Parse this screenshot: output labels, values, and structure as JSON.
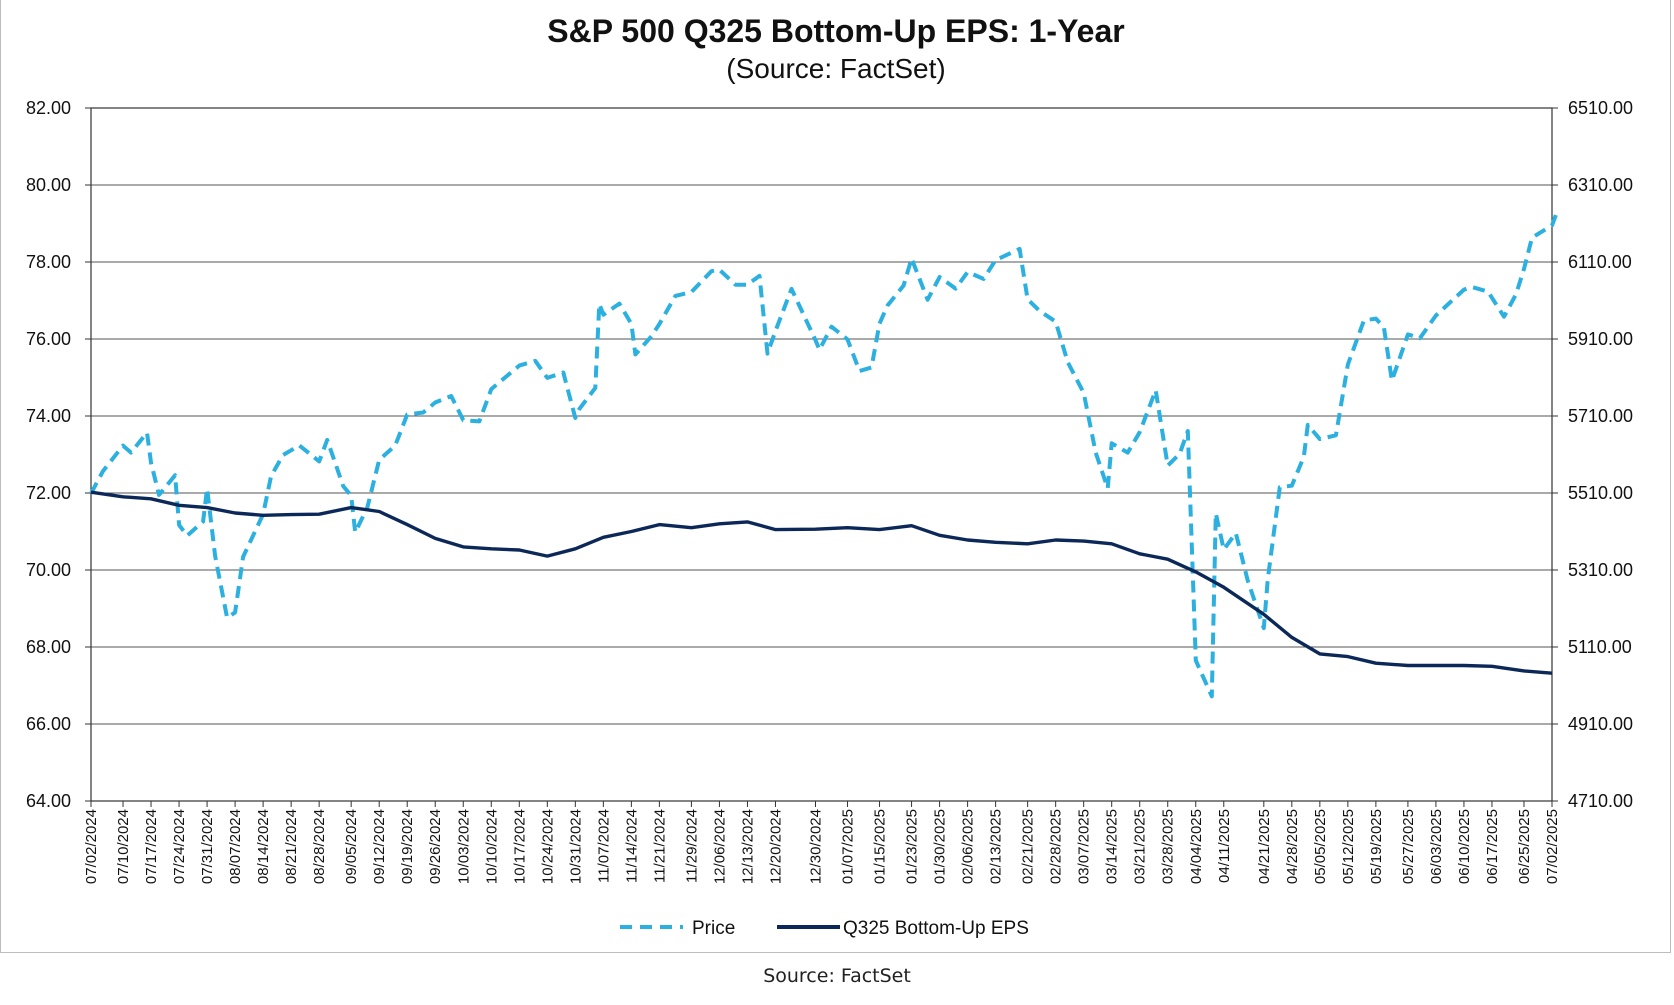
{
  "footer_source": "Source: FactSet",
  "chart_data": {
    "type": "line",
    "title": "S&P 500 Q325 Bottom-Up EPS: 1-Year",
    "subtitle": "(Source: FactSet)",
    "x_ticks": [
      "07/02/2024",
      "07/10/2024",
      "07/17/2024",
      "07/24/2024",
      "07/31/2024",
      "08/07/2024",
      "08/14/2024",
      "08/21/2024",
      "08/28/2024",
      "09/05/2024",
      "09/12/2024",
      "09/19/2024",
      "09/26/2024",
      "10/03/2024",
      "10/10/2024",
      "10/17/2024",
      "10/24/2024",
      "10/31/2024",
      "11/07/2024",
      "11/14/2024",
      "11/21/2024",
      "11/29/2024",
      "12/06/2024",
      "12/13/2024",
      "12/20/2024",
      "12/30/2024",
      "01/07/2025",
      "01/15/2025",
      "01/23/2025",
      "01/30/2025",
      "02/06/2025",
      "02/13/2025",
      "02/21/2025",
      "02/28/2025",
      "03/07/2025",
      "03/14/2025",
      "03/21/2025",
      "03/28/2025",
      "04/04/2025",
      "04/11/2025",
      "04/21/2025",
      "04/28/2025",
      "05/05/2025",
      "05/12/2025",
      "05/19/2025",
      "05/27/2025",
      "06/03/2025",
      "06/10/2025",
      "06/17/2025",
      "06/25/2025",
      "07/02/2025"
    ],
    "y_left": {
      "min": 64,
      "max": 82,
      "step": 2,
      "tick_labels": [
        "64.00",
        "66.00",
        "68.00",
        "70.00",
        "72.00",
        "74.00",
        "76.00",
        "78.00",
        "80.00",
        "82.00"
      ]
    },
    "y_right": {
      "min": 4710,
      "max": 6510,
      "step": 200,
      "tick_labels": [
        "4710.00",
        "4910.00",
        "5110.00",
        "5310.00",
        "5510.00",
        "5710.00",
        "5910.00",
        "6110.00",
        "6310.00",
        "6510.00"
      ]
    },
    "grid": "horizontal",
    "legend_position": "bottom",
    "series": [
      {
        "name": "Price",
        "axis": "right",
        "color": "#2bb0e0",
        "style": "dashed",
        "x": [
          "07/02/2024",
          "07/05/2024",
          "07/10/2024",
          "07/12/2024",
          "07/16/2024",
          "07/17/2024",
          "07/19/2024",
          "07/23/2024",
          "07/24/2024",
          "07/26/2024",
          "07/30/2024",
          "07/31/2024",
          "08/02/2024",
          "08/05/2024",
          "08/07/2024",
          "08/09/2024",
          "08/14/2024",
          "08/16/2024",
          "08/19/2024",
          "08/21/2024",
          "08/23/2024",
          "08/28/2024",
          "08/30/2024",
          "09/03/2024",
          "09/05/2024",
          "09/06/2024",
          "09/09/2024",
          "09/12/2024",
          "09/16/2024",
          "09/19/2024",
          "09/23/2024",
          "09/26/2024",
          "09/30/2024",
          "10/03/2024",
          "10/07/2024",
          "10/10/2024",
          "10/14/2024",
          "10/17/2024",
          "10/21/2024",
          "10/24/2024",
          "10/28/2024",
          "10/31/2024",
          "11/01/2024",
          "11/05/2024",
          "11/06/2024",
          "11/07/2024",
          "11/11/2024",
          "11/14/2024",
          "11/15/2024",
          "11/19/2024",
          "11/21/2024",
          "11/25/2024",
          "11/29/2024",
          "12/04/2024",
          "12/06/2024",
          "12/10/2024",
          "12/13/2024",
          "12/16/2024",
          "12/18/2024",
          "12/20/2024",
          "12/24/2024",
          "12/30/2024",
          "12/31/2024",
          "01/03/2025",
          "01/07/2025",
          "01/10/2025",
          "01/13/2025",
          "01/15/2025",
          "01/17/2025",
          "01/21/2025",
          "01/23/2025",
          "01/27/2025",
          "01/30/2025",
          "02/03/2025",
          "02/06/2025",
          "02/10/2025",
          "02/13/2025",
          "02/19/2025",
          "02/21/2025",
          "02/24/2025",
          "02/28/2025",
          "03/03/2025",
          "03/07/2025",
          "03/10/2025",
          "03/13/2025",
          "03/14/2025",
          "03/18/2025",
          "03/21/2025",
          "03/25/2025",
          "03/28/2025",
          "03/31/2025",
          "04/02/2025",
          "04/04/2025",
          "04/08/2025",
          "04/09/2025",
          "04/11/2025",
          "04/14/2025",
          "04/17/2025",
          "04/21/2025",
          "04/22/2025",
          "04/25/2025",
          "04/28/2025",
          "05/01/2025",
          "05/02/2025",
          "05/05/2025",
          "05/09/2025",
          "05/12/2025",
          "05/16/2025",
          "05/19/2025",
          "05/21/2025",
          "05/23/2025",
          "05/27/2025",
          "05/30/2025",
          "06/03/2025",
          "06/06/2025",
          "06/10/2025",
          "06/12/2025",
          "06/16/2025",
          "06/20/2025",
          "06/23/2025",
          "06/25/2025",
          "06/27/2025",
          "07/02/2025",
          "07/03/2025"
        ],
        "values": [
          5509,
          5567,
          5633,
          5615,
          5667,
          5589,
          5505,
          5556,
          5427,
          5399,
          5436,
          5522,
          5347,
          5186,
          5200,
          5344,
          5455,
          5554,
          5609,
          5621,
          5634,
          5592,
          5648,
          5528,
          5503,
          5408,
          5471,
          5596,
          5633,
          5714,
          5719,
          5745,
          5762,
          5699,
          5696,
          5780,
          5815,
          5841,
          5853,
          5809,
          5823,
          5705,
          5728,
          5783,
          6001,
          5973,
          6002,
          5949,
          5870,
          5917,
          5949,
          6022,
          6032,
          6086,
          6090,
          6051,
          6051,
          6074,
          5872,
          5931,
          6040,
          5907,
          5882,
          5942,
          5909,
          5827,
          5836,
          5950,
          5997,
          6049,
          6119,
          6012,
          6071,
          6041,
          6084,
          6066,
          6115,
          6144,
          6013,
          5983,
          5955,
          5850,
          5770,
          5615,
          5522,
          5639,
          5615,
          5668,
          5777,
          5581,
          5612,
          5671,
          5075,
          4982,
          5457,
          5363,
          5406,
          5282,
          5159,
          5287,
          5525,
          5529,
          5604,
          5687,
          5650,
          5660,
          5844,
          5958,
          5963,
          5940,
          5802,
          5922,
          5912,
          5971,
          6000,
          6038,
          6045,
          6033,
          5968,
          6026,
          6092,
          6173,
          6205,
          6233
        ]
      },
      {
        "name": "Q325 Bottom-Up EPS",
        "axis": "left",
        "color": "#0c2858",
        "style": "solid",
        "x": [
          "07/02/2024",
          "07/10/2024",
          "07/17/2024",
          "07/24/2024",
          "07/31/2024",
          "08/07/2024",
          "08/14/2024",
          "08/21/2024",
          "08/28/2024",
          "09/05/2024",
          "09/12/2024",
          "09/19/2024",
          "09/26/2024",
          "10/03/2024",
          "10/10/2024",
          "10/17/2024",
          "10/24/2024",
          "10/31/2024",
          "11/07/2024",
          "11/14/2024",
          "11/21/2024",
          "11/29/2024",
          "12/06/2024",
          "12/13/2024",
          "12/20/2024",
          "12/30/2024",
          "01/07/2025",
          "01/15/2025",
          "01/23/2025",
          "01/30/2025",
          "02/06/2025",
          "02/13/2025",
          "02/21/2025",
          "02/28/2025",
          "03/07/2025",
          "03/14/2025",
          "03/21/2025",
          "03/28/2025",
          "04/04/2025",
          "04/11/2025",
          "04/21/2025",
          "04/28/2025",
          "05/05/2025",
          "05/12/2025",
          "05/19/2025",
          "05/27/2025",
          "06/03/2025",
          "06/10/2025",
          "06/17/2025",
          "06/25/2025",
          "07/02/2025"
        ],
        "values": [
          72.02,
          71.9,
          71.85,
          71.68,
          71.62,
          71.48,
          71.42,
          71.44,
          71.45,
          71.62,
          71.52,
          71.18,
          70.82,
          70.6,
          70.55,
          70.52,
          70.36,
          70.55,
          70.85,
          71.0,
          71.18,
          71.1,
          71.2,
          71.25,
          71.05,
          71.06,
          71.1,
          71.05,
          71.15,
          70.9,
          70.78,
          70.72,
          70.68,
          70.78,
          70.75,
          70.68,
          70.42,
          70.28,
          69.95,
          69.55,
          68.85,
          68.25,
          67.82,
          67.75,
          67.58,
          67.52,
          67.52,
          67.52,
          67.5,
          67.38,
          67.32
        ]
      }
    ]
  }
}
